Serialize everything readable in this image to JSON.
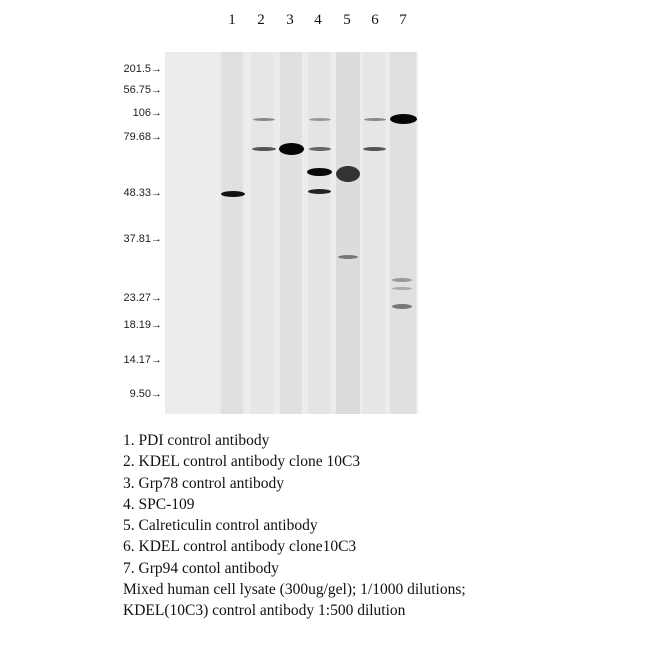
{
  "lane_numbers": [
    "1",
    "2",
    "3",
    "4",
    "5",
    "6",
    "7"
  ],
  "markers": [
    "201.5→",
    "56.75→",
    "106→",
    "79.68→",
    "48.33→",
    "37.81→",
    "23.27→",
    "18.19→",
    "14.17→",
    "9.50→"
  ],
  "legend": [
    "1. PDI control antibody",
    "2. KDEL control antibody clone 10C3",
    "3. Grp78 control antibody",
    "4. SPC-109",
    "5. Calreticulin control antibody",
    "6. KDEL control antibody clone10C3",
    "7. Grp94 contol antibody",
    "Mixed human cell lysate (300ug/gel); 1/1000 dilutions;",
    "KDEL(10C3) control antibody 1:500 dilution"
  ]
}
